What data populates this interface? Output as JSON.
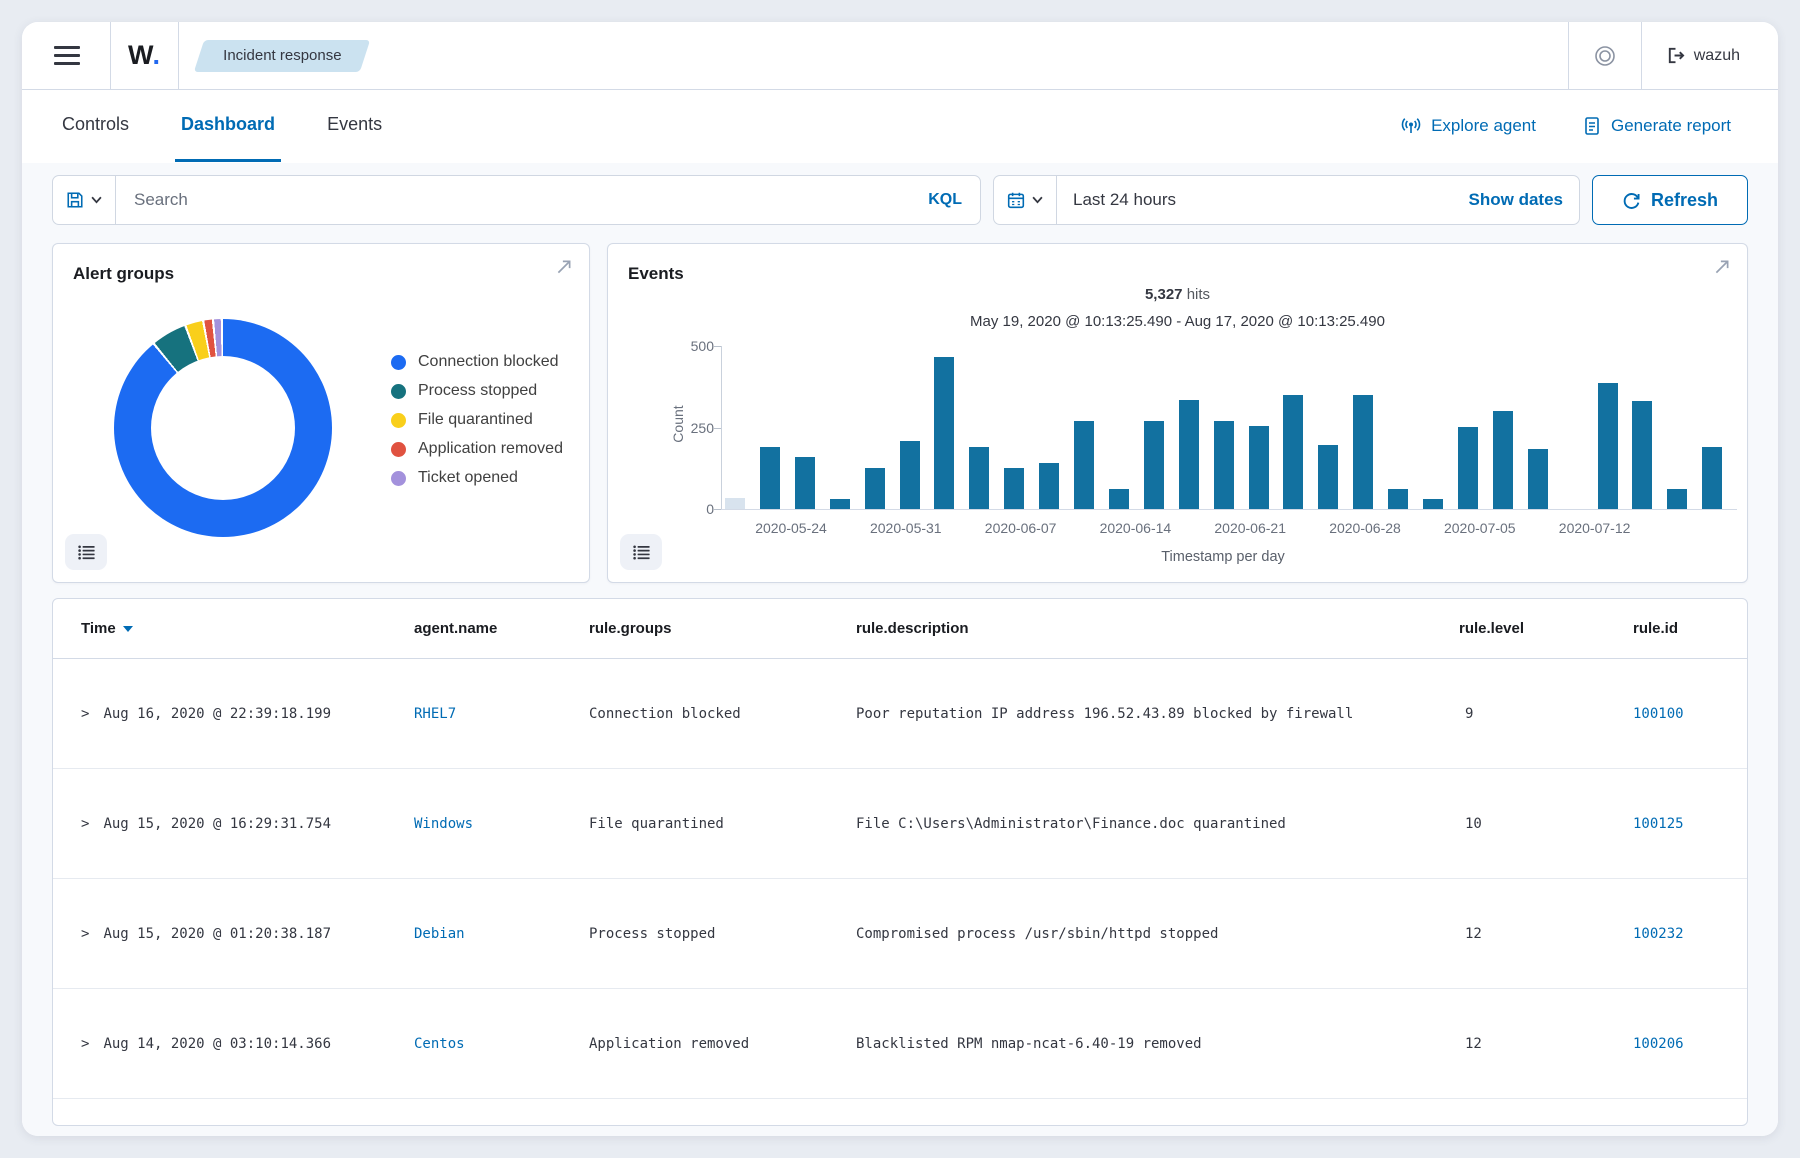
{
  "topbar": {
    "logo_w": "W",
    "logo_dot": ".",
    "breadcrumb": "Incident response",
    "user_label": "wazuh"
  },
  "tabs": [
    {
      "label": "Controls",
      "active": false
    },
    {
      "label": "Dashboard",
      "active": true
    },
    {
      "label": "Events",
      "active": false
    }
  ],
  "header_actions": [
    {
      "label": "Explore agent",
      "icon": "antenna-icon"
    },
    {
      "label": "Generate report",
      "icon": "report-icon"
    }
  ],
  "query_bar": {
    "search_placeholder": "Search",
    "kql_label": "KQL",
    "time_range": "Last 24 hours",
    "show_dates_label": "Show dates",
    "refresh_label": "Refresh"
  },
  "alert_groups_panel": {
    "title": "Alert groups"
  },
  "events_panel": {
    "title": "Events",
    "hits_value": "5,327",
    "hits_suffix": "hits",
    "date_range": "May 19, 2020 @ 10:13:25.490 - Aug 17, 2020 @ 10:13:25.490"
  },
  "chart_data": [
    {
      "type": "pie",
      "variant": "donut",
      "title": "Alert groups",
      "legend_position": "right",
      "labels": [
        "Connection blocked",
        "Process stopped",
        "File quarantined",
        "Application removed",
        "Ticket opened"
      ],
      "values_percent": [
        88.9,
        5.0,
        2.4,
        1.1,
        1.0
      ],
      "segments_deg": [
        320,
        18,
        8.5,
        4,
        3.5
      ],
      "colors": [
        "#1c6bf2",
        "#16727e",
        "#f9cf1b",
        "#e05240",
        "#a391dc"
      ]
    },
    {
      "type": "bar",
      "title": "Events histogram",
      "ylabel": "Count",
      "xlabel": "Timestamp per day",
      "ylim": [
        0,
        500
      ],
      "yticks": [
        500,
        250,
        0
      ],
      "xtick_labels": [
        "2020-05-24",
        "2020-05-31",
        "2020-06-07",
        "2020-06-14",
        "2020-06-21",
        "2020-06-28",
        "2020-07-05",
        "2020-07-12"
      ],
      "bar_color": "#1271a0",
      "partial_bucket_color": "#d8e3ee",
      "first_bar_is_partial_bucket": true,
      "values": [
        35,
        190,
        160,
        30,
        125,
        210,
        465,
        190,
        125,
        140,
        270,
        60,
        270,
        335,
        270,
        255,
        350,
        195,
        350,
        60,
        30,
        250,
        300,
        185,
        0,
        385,
        330,
        60,
        190
      ]
    }
  ],
  "table": {
    "expand_glyph": ">",
    "columns": [
      {
        "label": "Time",
        "sorted": "desc"
      },
      {
        "label": "agent.name"
      },
      {
        "label": "rule.groups"
      },
      {
        "label": "rule.description"
      },
      {
        "label": "rule.level"
      },
      {
        "label": "rule.id"
      }
    ],
    "rows": [
      {
        "time": "Aug 16, 2020 @ 22:39:18.199",
        "agent": "RHEL7",
        "groups": "Connection blocked",
        "description": "Poor reputation IP address 196.52.43.89 blocked by firewall",
        "level": "9",
        "id": "100100"
      },
      {
        "time": "Aug 15, 2020 @ 16:29:31.754",
        "agent": "Windows",
        "groups": "File quarantined",
        "description": "File C:\\Users\\Administrator\\Finance.doc quarantined",
        "level": "10",
        "id": "100125"
      },
      {
        "time": "Aug 15, 2020 @ 01:20:38.187",
        "agent": "Debian",
        "groups": "Process stopped",
        "description": "Compromised process /usr/sbin/httpd stopped",
        "level": "12",
        "id": "100232"
      },
      {
        "time": "Aug 14, 2020 @ 03:10:14.366",
        "agent": "Centos",
        "groups": "Application removed",
        "description": "Blacklisted RPM nmap-ncat-6.40-19 removed",
        "level": "12",
        "id": "100206"
      }
    ]
  }
}
